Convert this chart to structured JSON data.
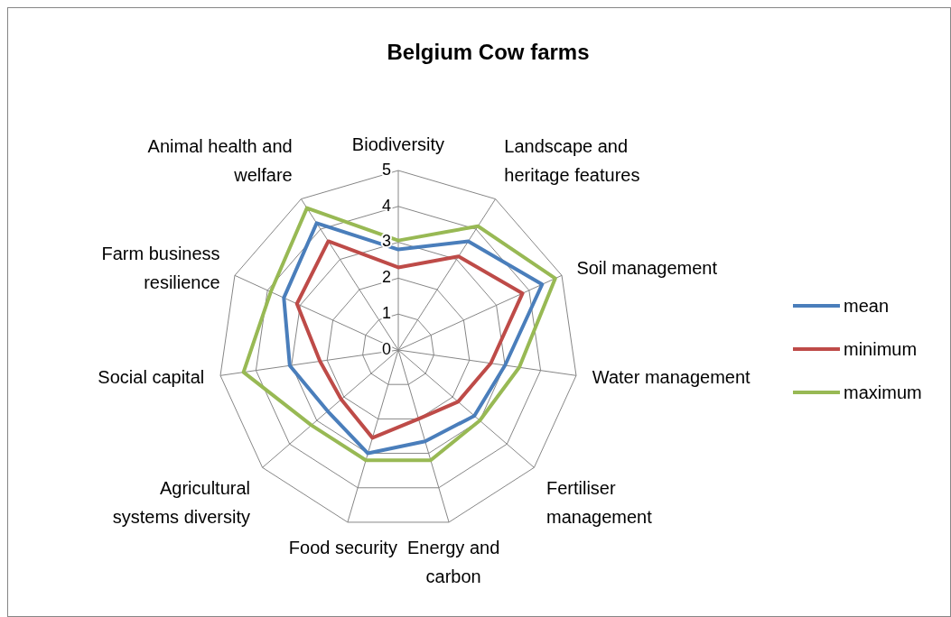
{
  "chart_data": {
    "type": "radar",
    "title": "Belgium Cow farms",
    "categories": [
      "Biodiversity",
      "Landscape and heritage features",
      "Soil management",
      "Water management",
      "Fertiliser management",
      "Energy and carbon",
      "Food security",
      "Agricultural systems diversity",
      "Social capital",
      "Farm business resilience",
      "Animal health and welfare"
    ],
    "series": [
      {
        "name": "mean",
        "color": "#4a7ebb",
        "values": [
          2.8,
          3.6,
          4.4,
          3.0,
          2.8,
          2.65,
          3.0,
          2.6,
          3.05,
          3.5,
          4.2
        ]
      },
      {
        "name": "minimum",
        "color": "#be4b48",
        "values": [
          2.3,
          3.1,
          3.8,
          2.6,
          2.2,
          2.0,
          2.55,
          2.1,
          2.2,
          3.1,
          3.6
        ]
      },
      {
        "name": "maximum",
        "color": "#98b954",
        "values": [
          3.05,
          4.1,
          4.8,
          3.4,
          3.0,
          3.2,
          3.2,
          3.2,
          4.35,
          3.9,
          4.7
        ]
      }
    ],
    "ylim": [
      0,
      5
    ],
    "yticks": [
      0,
      1,
      2,
      3,
      4,
      5
    ],
    "grid": true,
    "legend": "right"
  }
}
